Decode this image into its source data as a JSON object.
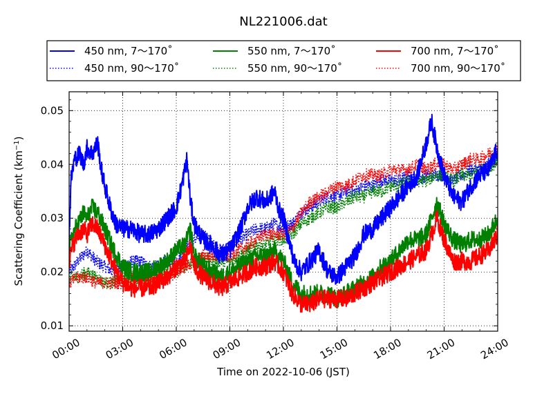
{
  "chart_data": {
    "type": "line",
    "title": "NL221006.dat",
    "xlabel": "Time on 2022-10-06 (JST)",
    "ylabel_main": "Scattering Coefficient (km",
    "ylabel_sup": "−1",
    "ylabel_close": ")",
    "xlim": [
      0,
      24
    ],
    "ylim": [
      0.009,
      0.0535
    ],
    "x_ticks": [
      0,
      3,
      6,
      9,
      12,
      15,
      18,
      21,
      24
    ],
    "x_tick_labels": [
      "00:00",
      "03:00",
      "06:00",
      "09:00",
      "12:00",
      "15:00",
      "18:00",
      "21:00",
      "24:00"
    ],
    "y_ticks": [
      0.01,
      0.02,
      0.03,
      0.04,
      0.05
    ],
    "y_tick_labels": [
      "0.01",
      "0.02",
      "0.03",
      "0.04",
      "0.05"
    ],
    "grid": true,
    "legend_position": "top",
    "series": [
      {
        "name": "450 nm, 7～170˚",
        "color": "#0000ff",
        "style": "solid",
        "x": [
          0,
          0.1,
          0.3,
          0.6,
          0.8,
          1.0,
          1.3,
          1.6,
          1.8,
          2.0,
          2.3,
          2.6,
          3.0,
          3.5,
          4.0,
          4.5,
          5.0,
          5.5,
          6.0,
          6.3,
          6.6,
          6.8,
          7.0,
          7.5,
          8.0,
          8.5,
          9.0,
          9.3,
          9.6,
          10.0,
          10.5,
          11.0,
          11.5,
          11.8,
          12.0,
          12.3,
          12.6,
          13.0,
          13.5,
          14.0,
          14.5,
          15.0,
          15.5,
          16.0,
          16.5,
          17.0,
          17.5,
          18.0,
          18.5,
          19.0,
          19.5,
          20.0,
          20.3,
          20.6,
          21.0,
          21.5,
          22.0,
          22.5,
          23.0,
          23.5,
          24.0
        ],
        "y": [
          0.026,
          0.037,
          0.041,
          0.042,
          0.04,
          0.043,
          0.042,
          0.044,
          0.039,
          0.036,
          0.032,
          0.029,
          0.028,
          0.028,
          0.027,
          0.027,
          0.028,
          0.03,
          0.032,
          0.036,
          0.041,
          0.033,
          0.029,
          0.026,
          0.025,
          0.023,
          0.024,
          0.026,
          0.028,
          0.032,
          0.034,
          0.033,
          0.035,
          0.031,
          0.03,
          0.026,
          0.022,
          0.02,
          0.022,
          0.024,
          0.02,
          0.019,
          0.021,
          0.023,
          0.027,
          0.028,
          0.03,
          0.032,
          0.034,
          0.036,
          0.038,
          0.044,
          0.048,
          0.043,
          0.038,
          0.034,
          0.033,
          0.036,
          0.038,
          0.039,
          0.043
        ]
      },
      {
        "name": "450 nm, 90～170˚",
        "color": "#0000ff",
        "style": "dotted",
        "x": [
          0,
          0.5,
          1.0,
          1.5,
          2.0,
          2.5,
          3.0,
          3.5,
          4.0,
          4.5,
          5.0,
          5.5,
          6.0,
          6.5,
          7.0,
          7.5,
          8.0,
          8.5,
          9.0,
          9.5,
          10.0,
          10.5,
          11.0,
          11.5,
          12.0,
          12.5,
          13.0,
          13.5,
          14.0,
          14.5,
          15.0,
          15.5,
          16.0,
          16.5,
          17.0,
          17.5,
          18.0,
          18.5,
          19.0,
          19.5,
          20.0,
          20.5,
          21.0,
          21.5,
          22.0,
          22.5,
          23.0,
          23.5,
          24.0
        ],
        "y": [
          0.02,
          0.022,
          0.024,
          0.022,
          0.021,
          0.02,
          0.021,
          0.022,
          0.022,
          0.021,
          0.021,
          0.022,
          0.022,
          0.024,
          0.026,
          0.027,
          0.025,
          0.024,
          0.025,
          0.026,
          0.027,
          0.028,
          0.028,
          0.029,
          0.028,
          0.029,
          0.031,
          0.032,
          0.033,
          0.034,
          0.034,
          0.035,
          0.035,
          0.036,
          0.036,
          0.037,
          0.037,
          0.037,
          0.038,
          0.037,
          0.038,
          0.038,
          0.038,
          0.037,
          0.038,
          0.039,
          0.039,
          0.04,
          0.041
        ]
      },
      {
        "name": "550 nm, 7～170˚",
        "color": "#008000",
        "style": "solid",
        "x": [
          0,
          0.2,
          0.5,
          0.8,
          1.0,
          1.3,
          1.6,
          2.0,
          2.5,
          3.0,
          3.5,
          4.0,
          4.5,
          5.0,
          5.5,
          6.0,
          6.5,
          6.8,
          7.0,
          7.5,
          8.0,
          8.5,
          9.0,
          9.5,
          10.0,
          10.5,
          11.0,
          11.5,
          12.0,
          12.5,
          13.0,
          13.5,
          14.0,
          14.5,
          15.0,
          15.5,
          16.0,
          16.5,
          17.0,
          17.5,
          18.0,
          18.5,
          19.0,
          19.5,
          20.0,
          20.3,
          20.6,
          21.0,
          21.5,
          22.0,
          22.5,
          23.0,
          23.5,
          24.0
        ],
        "y": [
          0.024,
          0.027,
          0.029,
          0.031,
          0.03,
          0.032,
          0.031,
          0.028,
          0.024,
          0.021,
          0.02,
          0.02,
          0.02,
          0.021,
          0.022,
          0.024,
          0.025,
          0.028,
          0.023,
          0.021,
          0.02,
          0.019,
          0.02,
          0.021,
          0.022,
          0.023,
          0.023,
          0.024,
          0.022,
          0.018,
          0.016,
          0.016,
          0.016,
          0.016,
          0.015,
          0.016,
          0.017,
          0.018,
          0.019,
          0.021,
          0.022,
          0.024,
          0.026,
          0.026,
          0.027,
          0.03,
          0.033,
          0.029,
          0.026,
          0.025,
          0.026,
          0.026,
          0.027,
          0.03
        ]
      },
      {
        "name": "550 nm, 90～170˚",
        "color": "#008000",
        "style": "dotted",
        "x": [
          0,
          0.5,
          1.0,
          1.5,
          2.0,
          2.5,
          3.0,
          3.5,
          4.0,
          4.5,
          5.0,
          5.5,
          6.0,
          6.5,
          7.0,
          7.5,
          8.0,
          8.5,
          9.0,
          9.5,
          10.0,
          10.5,
          11.0,
          11.5,
          12.0,
          12.5,
          13.0,
          13.5,
          14.0,
          14.5,
          15.0,
          15.5,
          16.0,
          16.5,
          17.0,
          17.5,
          18.0,
          18.5,
          19.0,
          19.5,
          20.0,
          20.5,
          21.0,
          21.5,
          22.0,
          22.5,
          23.0,
          23.5,
          24.0
        ],
        "y": [
          0.019,
          0.019,
          0.02,
          0.019,
          0.018,
          0.018,
          0.019,
          0.019,
          0.019,
          0.019,
          0.019,
          0.02,
          0.02,
          0.021,
          0.022,
          0.023,
          0.022,
          0.022,
          0.022,
          0.023,
          0.024,
          0.025,
          0.025,
          0.026,
          0.026,
          0.027,
          0.029,
          0.03,
          0.031,
          0.032,
          0.032,
          0.033,
          0.034,
          0.034,
          0.035,
          0.035,
          0.036,
          0.036,
          0.037,
          0.037,
          0.037,
          0.038,
          0.038,
          0.037,
          0.038,
          0.038,
          0.039,
          0.039,
          0.041
        ]
      },
      {
        "name": "700 nm, 7～170˚",
        "color": "#ff0000",
        "style": "solid",
        "x": [
          0,
          0.2,
          0.5,
          0.8,
          1.0,
          1.3,
          1.6,
          2.0,
          2.5,
          3.0,
          3.5,
          4.0,
          4.5,
          5.0,
          5.5,
          6.0,
          6.5,
          6.8,
          7.0,
          7.5,
          8.0,
          8.5,
          9.0,
          9.5,
          10.0,
          10.5,
          11.0,
          11.5,
          12.0,
          12.5,
          13.0,
          13.5,
          14.0,
          14.5,
          15.0,
          15.5,
          16.0,
          16.5,
          17.0,
          17.5,
          18.0,
          18.5,
          19.0,
          19.5,
          20.0,
          20.3,
          20.6,
          21.0,
          21.5,
          22.0,
          22.5,
          23.0,
          23.5,
          24.0
        ],
        "y": [
          0.022,
          0.025,
          0.027,
          0.028,
          0.027,
          0.029,
          0.028,
          0.025,
          0.021,
          0.018,
          0.017,
          0.017,
          0.017,
          0.018,
          0.019,
          0.021,
          0.022,
          0.025,
          0.021,
          0.019,
          0.018,
          0.017,
          0.018,
          0.019,
          0.02,
          0.021,
          0.021,
          0.022,
          0.02,
          0.016,
          0.014,
          0.014,
          0.015,
          0.015,
          0.015,
          0.015,
          0.016,
          0.017,
          0.018,
          0.019,
          0.02,
          0.021,
          0.022,
          0.023,
          0.024,
          0.027,
          0.03,
          0.026,
          0.022,
          0.022,
          0.022,
          0.023,
          0.024,
          0.027
        ]
      },
      {
        "name": "700 nm, 90～170˚",
        "color": "#ff0000",
        "style": "dotted",
        "x": [
          0,
          0.5,
          1.0,
          1.5,
          2.0,
          2.5,
          3.0,
          3.5,
          4.0,
          4.5,
          5.0,
          5.5,
          6.0,
          6.5,
          7.0,
          7.5,
          8.0,
          8.5,
          9.0,
          9.5,
          10.0,
          10.5,
          11.0,
          11.5,
          12.0,
          12.5,
          13.0,
          13.5,
          14.0,
          14.5,
          15.0,
          15.5,
          16.0,
          16.5,
          17.0,
          17.5,
          18.0,
          18.5,
          19.0,
          19.5,
          20.0,
          20.5,
          21.0,
          21.5,
          22.0,
          22.5,
          23.0,
          23.5,
          24.0
        ],
        "y": [
          0.018,
          0.019,
          0.019,
          0.018,
          0.018,
          0.018,
          0.018,
          0.019,
          0.019,
          0.019,
          0.019,
          0.019,
          0.02,
          0.021,
          0.022,
          0.023,
          0.023,
          0.023,
          0.023,
          0.024,
          0.025,
          0.026,
          0.027,
          0.027,
          0.027,
          0.028,
          0.031,
          0.033,
          0.034,
          0.035,
          0.036,
          0.036,
          0.037,
          0.038,
          0.038,
          0.038,
          0.039,
          0.039,
          0.039,
          0.04,
          0.039,
          0.04,
          0.04,
          0.039,
          0.04,
          0.041,
          0.041,
          0.042,
          0.043
        ]
      }
    ]
  }
}
